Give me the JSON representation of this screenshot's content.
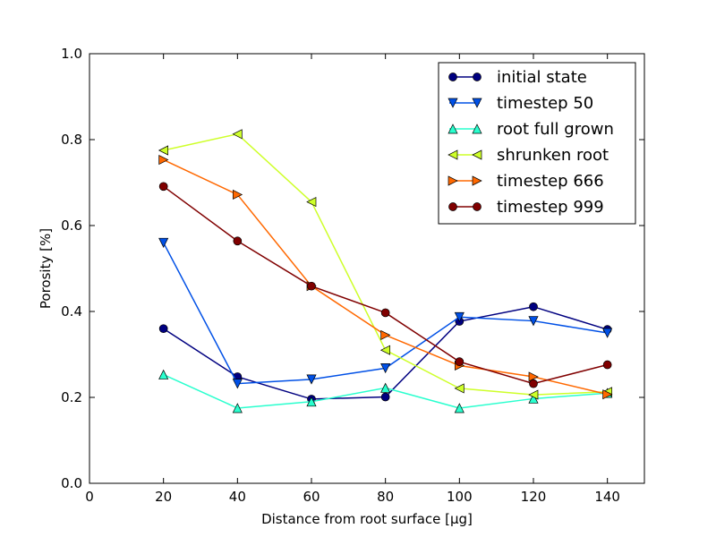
{
  "chart_data": {
    "type": "line",
    "title": "",
    "xlabel": "Distance from root surface [μg]",
    "ylabel": "Porosity [%]",
    "xlim": [
      0,
      150
    ],
    "ylim": [
      0.0,
      1.0
    ],
    "xticks": [
      0,
      20,
      40,
      60,
      80,
      100,
      120,
      140
    ],
    "yticks": [
      0.0,
      0.2,
      0.4,
      0.6,
      0.8,
      1.0
    ],
    "xtick_labels": [
      "0",
      "20",
      "40",
      "60",
      "80",
      "100",
      "120",
      "140"
    ],
    "ytick_labels": [
      "0.0",
      "0.2",
      "0.4",
      "0.6",
      "0.8",
      "1.0"
    ],
    "grid": false,
    "legend_position": "top-right",
    "x": [
      20,
      40,
      60,
      80,
      100,
      120,
      140
    ],
    "series": [
      {
        "name": "initial state",
        "color": "#000080",
        "marker": "circle",
        "values": [
          0.36,
          0.248,
          0.196,
          0.201,
          0.377,
          0.411,
          0.358
        ]
      },
      {
        "name": "timestep 50",
        "color": "#0050e6",
        "marker": "triangle-down",
        "values": [
          0.56,
          0.232,
          0.242,
          0.268,
          0.387,
          0.378,
          0.35
        ]
      },
      {
        "name": "root full grown",
        "color": "#29ffce",
        "marker": "triangle-up",
        "values": [
          0.253,
          0.175,
          0.19,
          0.222,
          0.175,
          0.197,
          0.21
        ]
      },
      {
        "name": "shrunken root",
        "color": "#ceff29",
        "marker": "triangle-left",
        "values": [
          0.775,
          0.813,
          0.655,
          0.31,
          0.221,
          0.206,
          0.213
        ]
      },
      {
        "name": "timestep 666",
        "color": "#ff6800",
        "marker": "triangle-right",
        "values": [
          0.753,
          0.672,
          0.459,
          0.345,
          0.274,
          0.248,
          0.207
        ]
      },
      {
        "name": "timestep 999",
        "color": "#800000",
        "marker": "circle",
        "values": [
          0.691,
          0.564,
          0.459,
          0.397,
          0.283,
          0.232,
          0.276
        ]
      }
    ]
  }
}
